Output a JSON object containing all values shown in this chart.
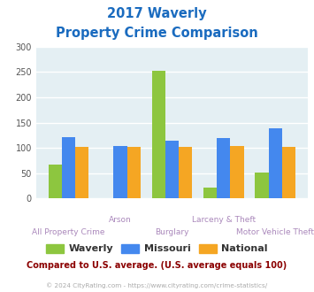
{
  "title_line1": "2017 Waverly",
  "title_line2": "Property Crime Comparison",
  "categories": [
    "All Property Crime",
    "Arson",
    "Burglary",
    "Larceny & Theft",
    "Motor Vehicle Theft"
  ],
  "waverly": [
    67,
    0,
    253,
    22,
    51
  ],
  "missouri": [
    122,
    103,
    115,
    120,
    138
  ],
  "national": [
    102,
    102,
    102,
    103,
    102
  ],
  "waverly_color": "#8dc63f",
  "missouri_color": "#4488ee",
  "national_color": "#f5a623",
  "bg_color": "#e4eff3",
  "ylim": [
    0,
    300
  ],
  "yticks": [
    0,
    50,
    100,
    150,
    200,
    250,
    300
  ],
  "footnote": "Compared to U.S. average. (U.S. average equals 100)",
  "copyright": "© 2024 CityRating.com - https://www.cityrating.com/crime-statistics/",
  "title_color": "#1a6bbf",
  "footnote_color": "#8b0000",
  "copyright_color": "#aaaaaa",
  "xlabel_color": "#aa88bb"
}
